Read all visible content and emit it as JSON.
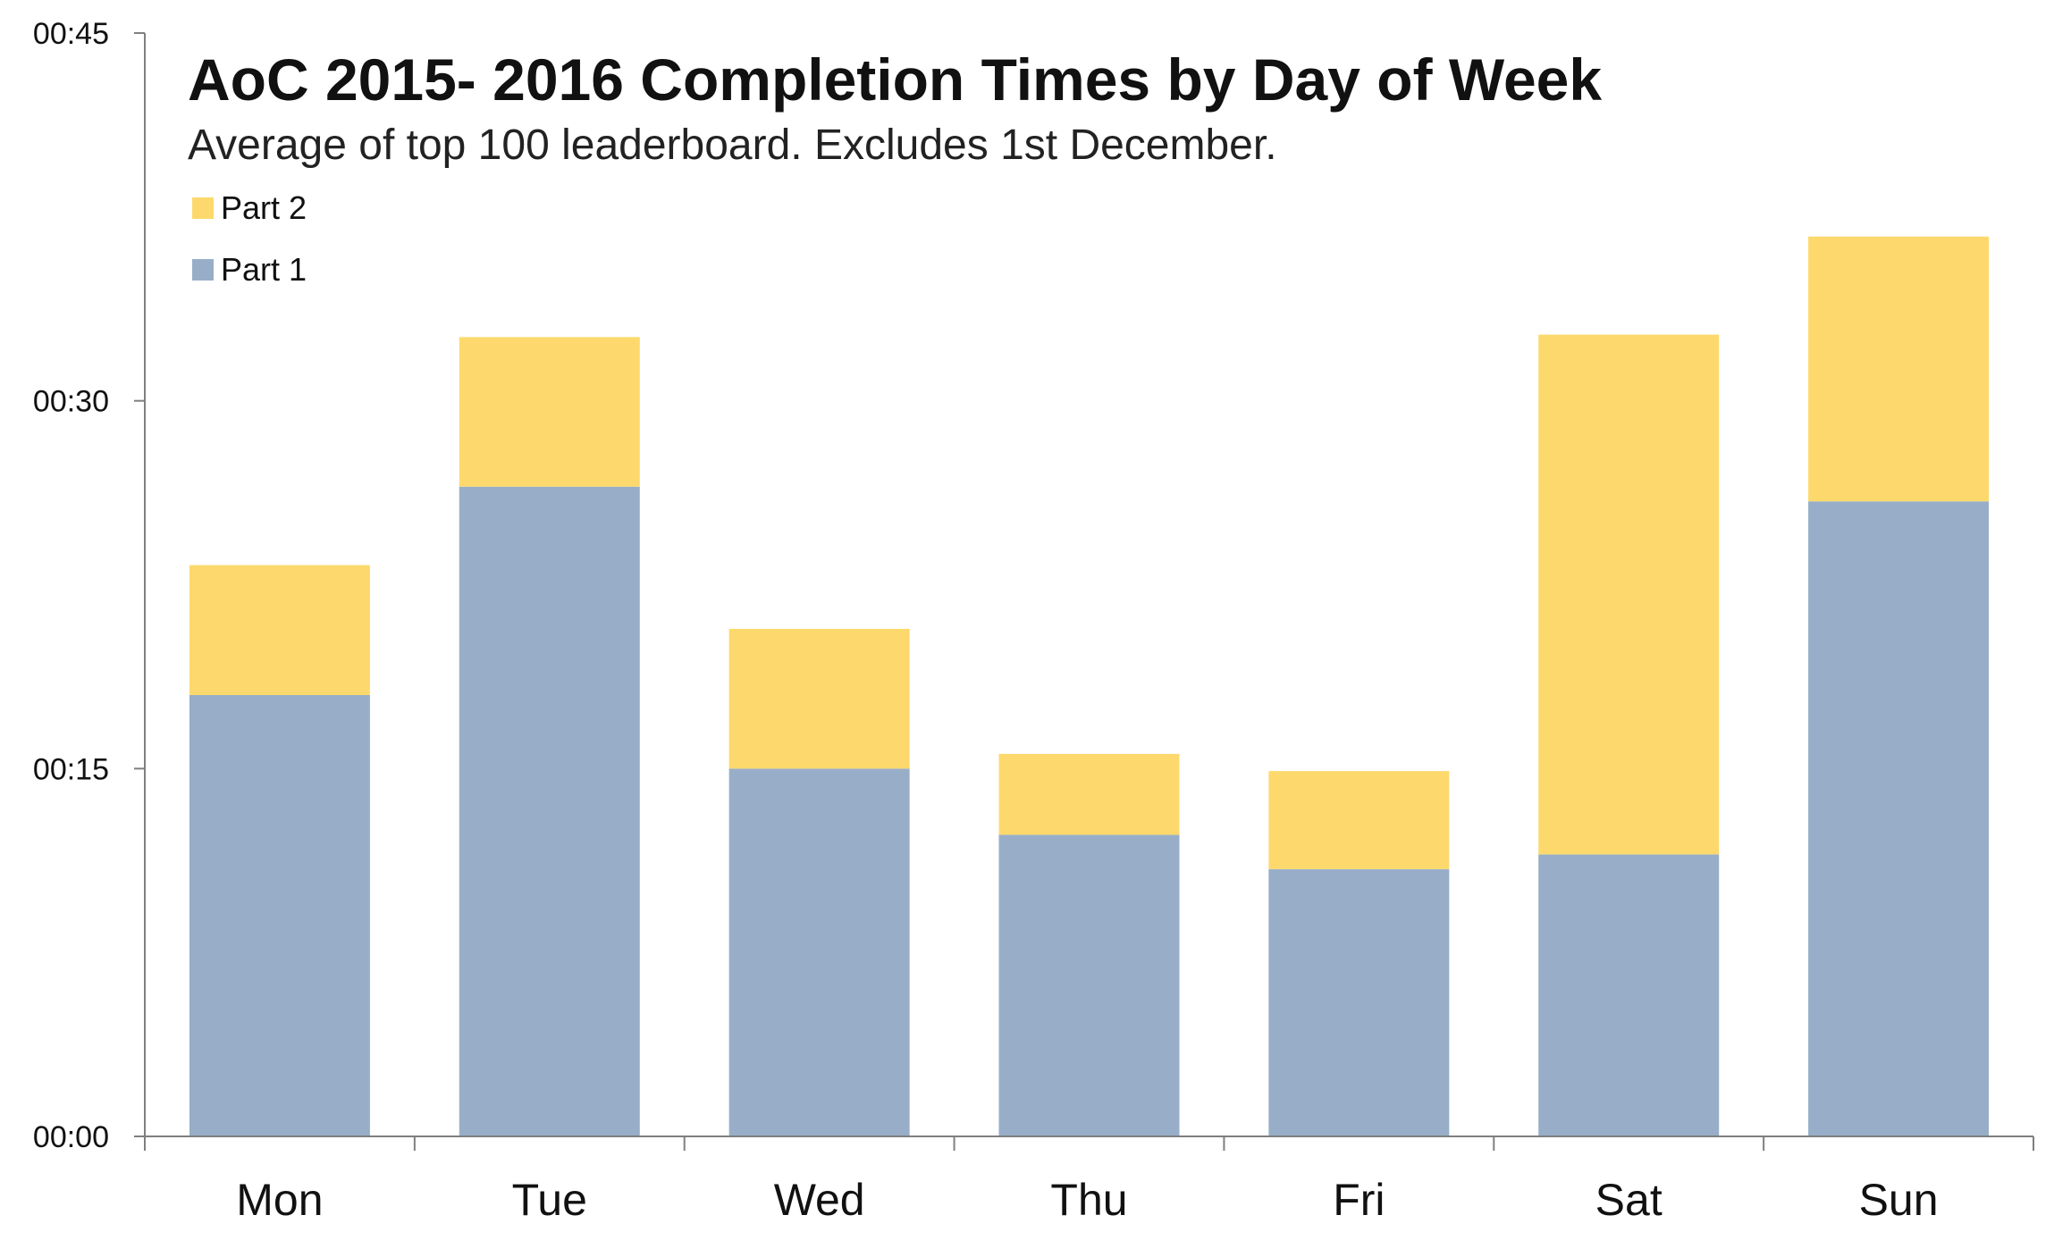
{
  "chart_data": {
    "type": "bar",
    "stacked": true,
    "title": "AoC 2015- 2016 Completion Times by Day of Week",
    "subtitle": "Average of top 100 leaderboard. Excludes 1st December.",
    "categories": [
      "Mon",
      "Tue",
      "Wed",
      "Thu",
      "Fri",
      "Sat",
      "Sun"
    ],
    "series": [
      {
        "name": "Part 1",
        "color": "#98AEC8",
        "values": [
          18.0,
          26.5,
          15.0,
          12.3,
          10.9,
          11.5,
          25.9
        ]
      },
      {
        "name": "Part 2",
        "color": "#FDD96D",
        "values": [
          5.3,
          6.1,
          5.7,
          3.3,
          4.0,
          21.2,
          10.8
        ]
      }
    ],
    "legend_order": [
      "Part 2",
      "Part 1"
    ],
    "legend_position": "top-left",
    "y_unit": "minutes",
    "ylim": [
      0,
      45
    ],
    "yticks": [
      0,
      15,
      30,
      45
    ],
    "ytick_labels": [
      "00:00",
      "00:15",
      "00:30",
      "00:45"
    ],
    "grid": false
  }
}
